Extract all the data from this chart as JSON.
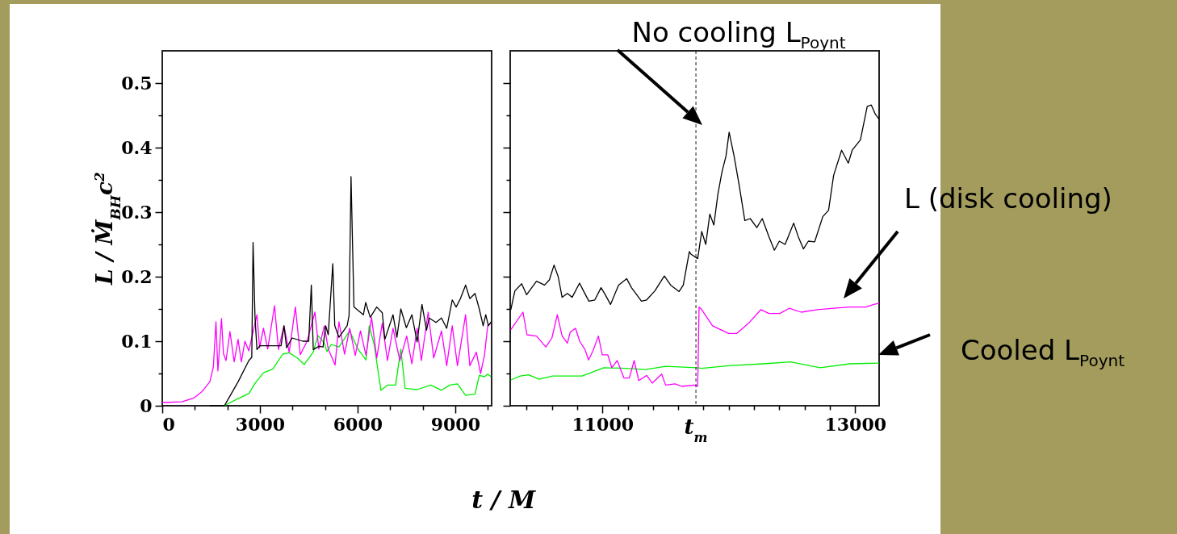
{
  "chart_data": [
    {
      "type": "line",
      "ylabel": "L / Ṁ$_{BH}$c$^{2}$",
      "xlabel": "t / M",
      "xlim": [
        0,
        10120
      ],
      "ylim": [
        0,
        0.55
      ],
      "xticks": [
        0,
        {
          "value": 1000,
          "label": null
        },
        {
          "value": 2000,
          "label": null
        },
        3000,
        {
          "value": 4000,
          "label": null
        },
        {
          "value": 5000,
          "label": null
        },
        6000,
        {
          "value": 7000,
          "label": null
        },
        {
          "value": 8000,
          "label": null
        },
        9000,
        {
          "value": 10000,
          "label": null
        }
      ],
      "yticks": [
        0,
        {
          "value": 0.05,
          "label": null
        },
        0.1,
        {
          "value": 0.15,
          "label": null
        },
        0.2,
        {
          "value": 0.25,
          "label": null
        },
        0.3,
        {
          "value": 0.35,
          "label": null
        },
        0.4,
        {
          "value": 0.45,
          "label": null
        },
        0.5
      ],
      "series": [
        {
          "color": "#000000",
          "x": [
            1460,
            1910,
            2000,
            2330,
            2660,
            2750,
            2790,
            2850,
            2910,
            3000,
            3650,
            3740,
            3820,
            3990,
            4320,
            4500,
            4580,
            4640,
            4810,
            4940,
            5020,
            5100,
            5240,
            5300,
            5430,
            5680,
            5740,
            5800,
            5890,
            6180,
            6250,
            6390,
            6590,
            6760,
            6840,
            7090,
            7210,
            7330,
            7500,
            7670,
            7830,
            7980,
            8120,
            8200,
            8410,
            8580,
            8740,
            8910,
            9030,
            9160,
            9320,
            9450,
            9610,
            9740,
            9860,
            9940,
            10020,
            10100
          ],
          "values": [
            0,
            0,
            0.008,
            0.037,
            0.07,
            0.075,
            0.253,
            0.137,
            0.087,
            0.093,
            0.093,
            0.124,
            0.09,
            0.105,
            0.1,
            0.1,
            0.187,
            0.087,
            0.092,
            0.091,
            0.124,
            0.11,
            0.22,
            0.124,
            0.106,
            0.124,
            0.14,
            0.355,
            0.153,
            0.141,
            0.16,
            0.137,
            0.153,
            0.144,
            0.103,
            0.141,
            0.106,
            0.15,
            0.121,
            0.141,
            0.099,
            0.157,
            0.117,
            0.136,
            0.129,
            0.136,
            0.12,
            0.164,
            0.153,
            0.166,
            0.187,
            0.166,
            0.174,
            0.15,
            0.124,
            0.141,
            0.124,
            0.13
          ]
        },
        {
          "color": "#ff00ff",
          "x": [
            0,
            600,
            970,
            1220,
            1460,
            1570,
            1650,
            1710,
            1820,
            1880,
            1960,
            2080,
            2210,
            2330,
            2430,
            2540,
            2660,
            2910,
            2990,
            3110,
            3240,
            3450,
            3570,
            3740,
            3900,
            4090,
            4240,
            4450,
            4690,
            4810,
            4980,
            5100,
            5310,
            5430,
            5600,
            5760,
            5930,
            6090,
            6260,
            6430,
            6590,
            6760,
            6920,
            7090,
            7300,
            7510,
            7670,
            7830,
            7960,
            8170,
            8340,
            8580,
            8740,
            8910,
            9070,
            9320,
            9450,
            9650,
            9780,
            9900,
            10000,
            10100
          ],
          "values": [
            0.005,
            0.006,
            0.012,
            0.022,
            0.037,
            0.06,
            0.13,
            0.054,
            0.135,
            0.081,
            0.07,
            0.115,
            0.068,
            0.103,
            0.068,
            0.1,
            0.085,
            0.141,
            0.09,
            0.12,
            0.088,
            0.155,
            0.087,
            0.124,
            0.083,
            0.153,
            0.079,
            0.1,
            0.145,
            0.088,
            0.124,
            0.088,
            0.063,
            0.13,
            0.08,
            0.12,
            0.078,
            0.116,
            0.078,
            0.137,
            0.074,
            0.128,
            0.07,
            0.12,
            0.07,
            0.108,
            0.065,
            0.12,
            0.07,
            0.145,
            0.074,
            0.116,
            0.062,
            0.124,
            0.062,
            0.141,
            0.062,
            0.083,
            0.05,
            0.078,
            0.124,
            0.128
          ]
        },
        {
          "color": "#00ee00",
          "x": [
            1900,
            2330,
            2660,
            2870,
            3110,
            3400,
            3700,
            3900,
            4150,
            4360,
            4640,
            4780,
            4980,
            5060,
            5190,
            5430,
            5760,
            6010,
            6260,
            6360,
            6510,
            6720,
            6920,
            7170,
            7330,
            7460,
            7830,
            8250,
            8580,
            8830,
            9070,
            9320,
            9610,
            9740,
            9900,
            10000,
            10100
          ],
          "values": [
            0,
            0.011,
            0.019,
            0.036,
            0.051,
            0.057,
            0.08,
            0.082,
            0.074,
            0.064,
            0.083,
            0.109,
            0.097,
            0.084,
            0.095,
            0.091,
            0.116,
            0.088,
            0.071,
            0.124,
            0.095,
            0.024,
            0.032,
            0.032,
            0.088,
            0.027,
            0.025,
            0.032,
            0.024,
            0.032,
            0.034,
            0.016,
            0.018,
            0.047,
            0.045,
            0.049,
            0.045
          ]
        }
      ]
    },
    {
      "type": "line",
      "xlim": [
        10270,
        13190
      ],
      "ylim": [
        0,
        0.55
      ],
      "tick_labels": "x",
      "xticks": [
        {
          "value": 10400,
          "label": null
        },
        {
          "value": 10600,
          "label": null
        },
        {
          "value": 10800,
          "label": null
        },
        11000,
        {
          "value": 11200,
          "label": null
        },
        {
          "value": 11400,
          "label": null
        },
        {
          "value": 11600,
          "label": null
        },
        {
          "value": 11800,
          "label": null
        },
        {
          "value": 12000,
          "label": null
        },
        {
          "value": 12200,
          "label": null
        },
        {
          "value": 12400,
          "label": null
        },
        {
          "value": 12600,
          "label": null
        },
        {
          "value": 12800,
          "label": null
        },
        13000
      ],
      "yticks": [
        0,
        {
          "value": 0.05,
          "label": null
        },
        0.1,
        {
          "value": 0.15,
          "label": null
        },
        0.2,
        {
          "value": 0.25,
          "label": null
        },
        0.3,
        {
          "value": 0.35,
          "label": null
        },
        0.4,
        {
          "value": 0.45,
          "label": null
        },
        0.5
      ],
      "ref_lines": [
        {
          "axis": "x",
          "value": 11740,
          "label": "t$_{m}$",
          "line_style": "dashed",
          "color": "#000000"
        }
      ],
      "annotations": [
        "No cooling L$_{Poynt}$",
        "L (disk cooling)",
        "Cooled L$_{Poynt}$"
      ],
      "series": [
        {
          "color": "#000000",
          "x": [
            10275,
            10307,
            10361,
            10400,
            10478,
            10542,
            10580,
            10617,
            10650,
            10681,
            10723,
            10760,
            10819,
            10850,
            10893,
            10940,
            10989,
            11020,
            11064,
            11128,
            11192,
            11230,
            11309,
            11350,
            11415,
            11490,
            11540,
            11607,
            11640,
            11688,
            11700,
            11754,
            11786,
            11818,
            11850,
            11882,
            11914,
            11946,
            11978,
            12003,
            12041,
            12083,
            12127,
            12170,
            12222,
            12265,
            12318,
            12361,
            12400,
            12446,
            12514,
            12550,
            12591,
            12630,
            12680,
            12744,
            12790,
            12830,
            12893,
            12946,
            12977,
            13042,
            13096,
            13128,
            13160,
            13190
          ],
          "values": [
            0.149,
            0.178,
            0.189,
            0.172,
            0.193,
            0.187,
            0.195,
            0.218,
            0.2,
            0.168,
            0.174,
            0.168,
            0.19,
            0.178,
            0.162,
            0.164,
            0.183,
            0.173,
            0.157,
            0.187,
            0.197,
            0.183,
            0.162,
            0.164,
            0.178,
            0.201,
            0.187,
            0.177,
            0.187,
            0.239,
            0.235,
            0.228,
            0.27,
            0.25,
            0.297,
            0.28,
            0.328,
            0.362,
            0.387,
            0.424,
            0.388,
            0.341,
            0.287,
            0.29,
            0.276,
            0.29,
            0.262,
            0.241,
            0.255,
            0.25,
            0.283,
            0.262,
            0.243,
            0.255,
            0.254,
            0.293,
            0.303,
            0.357,
            0.396,
            0.376,
            0.396,
            0.412,
            0.464,
            0.466,
            0.452,
            0.444
          ]
        },
        {
          "color": "#ff00ff",
          "x": [
            10275,
            10371,
            10403,
            10478,
            10552,
            10600,
            10643,
            10681,
            10723,
            10745,
            10787,
            10820,
            10862,
            10890,
            10925,
            10968,
            10999,
            11042,
            11074,
            11117,
            11170,
            11213,
            11251,
            11288,
            11351,
            11394,
            11469,
            11500,
            11575,
            11628,
            11724,
            11754,
            11765,
            11786,
            11871,
            11999,
            12062,
            12158,
            12254,
            12318,
            12404,
            12478,
            12574,
            12702,
            12830,
            12958,
            13085,
            13149,
            13190
          ],
          "values": [
            0.118,
            0.145,
            0.11,
            0.108,
            0.091,
            0.105,
            0.141,
            0.108,
            0.097,
            0.114,
            0.12,
            0.1,
            0.087,
            0.071,
            0.085,
            0.108,
            0.079,
            0.079,
            0.059,
            0.07,
            0.043,
            0.043,
            0.07,
            0.039,
            0.047,
            0.035,
            0.049,
            0.032,
            0.034,
            0.03,
            0.032,
            0.03,
            0.153,
            0.149,
            0.124,
            0.112,
            0.112,
            0.128,
            0.149,
            0.143,
            0.143,
            0.151,
            0.145,
            0.149,
            0.151,
            0.153,
            0.153,
            0.157,
            0.159
          ]
        },
        {
          "color": "#00ee00",
          "x": [
            10275,
            10350,
            10414,
            10499,
            10606,
            10840,
            11010,
            11181,
            11341,
            11501,
            11745,
            11786,
            11999,
            12276,
            12489,
            12723,
            12958,
            13190
          ],
          "values": [
            0.04,
            0.046,
            0.048,
            0.041,
            0.046,
            0.046,
            0.059,
            0.058,
            0.056,
            0.061,
            0.059,
            0.058,
            0.062,
            0.065,
            0.068,
            0.059,
            0.065,
            0.066
          ]
        }
      ]
    }
  ]
}
